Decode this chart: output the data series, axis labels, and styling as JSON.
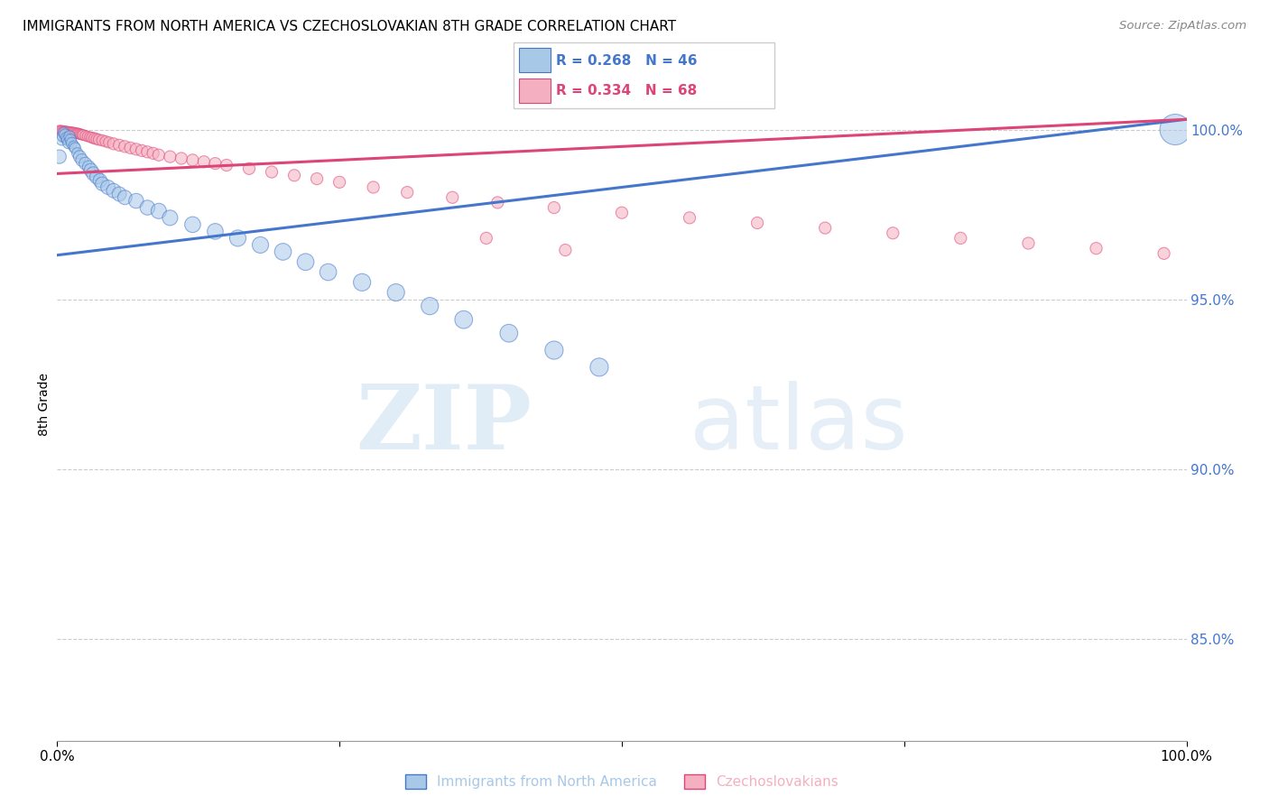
{
  "title": "IMMIGRANTS FROM NORTH AMERICA VS CZECHOSLOVAKIAN 8TH GRADE CORRELATION CHART",
  "source": "Source: ZipAtlas.com",
  "ylabel": "8th Grade",
  "ytick_labels": [
    "85.0%",
    "90.0%",
    "95.0%",
    "100.0%"
  ],
  "ytick_values": [
    0.85,
    0.9,
    0.95,
    1.0
  ],
  "xlim": [
    0.0,
    1.0
  ],
  "ylim": [
    0.82,
    1.018
  ],
  "legend_blue": "R = 0.268   N = 46",
  "legend_pink": "R = 0.334   N = 68",
  "legend2_blue": "Immigrants from North America",
  "legend2_pink": "Czechoslovakians",
  "blue_color": "#a8c8e8",
  "pink_color": "#f4b0c0",
  "blue_line_color": "#4477cc",
  "pink_line_color": "#dd4477",
  "background_color": "#ffffff",
  "watermark_zip": "ZIP",
  "watermark_atlas": "atlas",
  "blue_scatter_x": [
    0.002,
    0.004,
    0.005,
    0.006,
    0.007,
    0.008,
    0.009,
    0.01,
    0.011,
    0.012,
    0.013,
    0.015,
    0.016,
    0.018,
    0.02,
    0.022,
    0.025,
    0.028,
    0.03,
    0.032,
    0.035,
    0.038,
    0.04,
    0.045,
    0.05,
    0.055,
    0.06,
    0.07,
    0.08,
    0.09,
    0.1,
    0.12,
    0.14,
    0.16,
    0.18,
    0.2,
    0.22,
    0.24,
    0.27,
    0.3,
    0.33,
    0.36,
    0.4,
    0.44,
    0.48,
    0.99
  ],
  "blue_scatter_y": [
    0.992,
    0.997,
    0.998,
    0.999,
    0.9985,
    0.9975,
    0.997,
    0.996,
    0.998,
    0.997,
    0.996,
    0.995,
    0.9945,
    0.993,
    0.992,
    0.991,
    0.99,
    0.989,
    0.988,
    0.987,
    0.986,
    0.985,
    0.984,
    0.983,
    0.982,
    0.981,
    0.98,
    0.979,
    0.977,
    0.976,
    0.974,
    0.972,
    0.97,
    0.968,
    0.966,
    0.964,
    0.961,
    0.958,
    0.955,
    0.952,
    0.948,
    0.944,
    0.94,
    0.935,
    0.93,
    1.0
  ],
  "blue_scatter_sizes": [
    120,
    80,
    80,
    80,
    80,
    80,
    80,
    80,
    80,
    80,
    80,
    80,
    80,
    80,
    100,
    100,
    100,
    100,
    120,
    120,
    120,
    120,
    120,
    130,
    130,
    130,
    130,
    140,
    140,
    150,
    150,
    160,
    160,
    170,
    170,
    180,
    180,
    180,
    190,
    190,
    190,
    200,
    200,
    210,
    210,
    600
  ],
  "pink_scatter_x": [
    0.002,
    0.003,
    0.004,
    0.005,
    0.006,
    0.007,
    0.008,
    0.009,
    0.01,
    0.011,
    0.012,
    0.013,
    0.014,
    0.015,
    0.016,
    0.017,
    0.018,
    0.019,
    0.02,
    0.021,
    0.022,
    0.023,
    0.025,
    0.027,
    0.029,
    0.031,
    0.033,
    0.035,
    0.037,
    0.04,
    0.043,
    0.046,
    0.05,
    0.055,
    0.06,
    0.065,
    0.07,
    0.075,
    0.08,
    0.085,
    0.09,
    0.1,
    0.11,
    0.12,
    0.13,
    0.14,
    0.15,
    0.17,
    0.19,
    0.21,
    0.23,
    0.25,
    0.28,
    0.31,
    0.35,
    0.39,
    0.44,
    0.5,
    0.56,
    0.62,
    0.68,
    0.74,
    0.8,
    0.86,
    0.92,
    0.98,
    0.38,
    0.45
  ],
  "pink_scatter_y": [
    0.9998,
    0.9998,
    0.9997,
    0.9997,
    0.9996,
    0.9996,
    0.9995,
    0.9995,
    0.9994,
    0.9994,
    0.9993,
    0.9993,
    0.9992,
    0.9992,
    0.9991,
    0.999,
    0.9989,
    0.9988,
    0.9987,
    0.9986,
    0.9985,
    0.9984,
    0.9982,
    0.998,
    0.9978,
    0.9976,
    0.9974,
    0.9972,
    0.997,
    0.9968,
    0.9965,
    0.9962,
    0.9958,
    0.9954,
    0.995,
    0.9946,
    0.9942,
    0.9938,
    0.9934,
    0.993,
    0.9925,
    0.992,
    0.9915,
    0.991,
    0.9905,
    0.99,
    0.9895,
    0.9885,
    0.9875,
    0.9865,
    0.9855,
    0.9845,
    0.983,
    0.9815,
    0.98,
    0.9785,
    0.977,
    0.9755,
    0.974,
    0.9725,
    0.971,
    0.9695,
    0.968,
    0.9665,
    0.965,
    0.9635,
    0.968,
    0.9645
  ],
  "pink_scatter_sizes": [
    60,
    60,
    60,
    60,
    60,
    60,
    60,
    60,
    60,
    60,
    60,
    60,
    60,
    60,
    60,
    60,
    70,
    70,
    70,
    70,
    70,
    70,
    70,
    70,
    70,
    80,
    80,
    80,
    80,
    80,
    80,
    80,
    90,
    90,
    90,
    90,
    90,
    90,
    90,
    90,
    90,
    90,
    90,
    90,
    90,
    90,
    90,
    90,
    90,
    90,
    90,
    90,
    90,
    90,
    90,
    90,
    90,
    90,
    90,
    90,
    90,
    90,
    90,
    90,
    90,
    90,
    90,
    90
  ],
  "blue_trendline_x": [
    0.0,
    1.0
  ],
  "blue_trendline_y": [
    0.963,
    1.003
  ],
  "pink_trendline_x": [
    0.0,
    1.0
  ],
  "pink_trendline_y": [
    0.987,
    1.003
  ]
}
